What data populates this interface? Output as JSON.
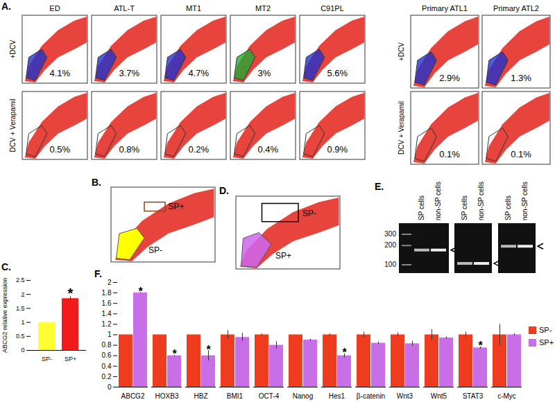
{
  "figure": {
    "A": {
      "label": "A.",
      "columns": [
        "ED",
        "ATL-T",
        "MT1",
        "MT2",
        "C91PL"
      ],
      "rows": [
        "+DCV",
        "DCV + Verapamil"
      ],
      "percentages": [
        [
          "4.1%",
          "3.7%",
          "4.7%",
          "3%",
          "5.6%"
        ],
        [
          "0.5%",
          "0.8%",
          "0.2%",
          "0.4%",
          "0.9%"
        ]
      ],
      "gate_colors": [
        "#2233cc",
        "#2233cc",
        "#2233cc",
        "#22aa33",
        "#2233cc"
      ],
      "primary": {
        "columns": [
          "Primary ATL1",
          "Primary ATL2"
        ],
        "rows": [
          "+DCV",
          "DCV + Verapamil"
        ],
        "percentages": [
          [
            "2.9%",
            "1.3%"
          ],
          [
            "0.1%",
            "0.1%"
          ]
        ]
      }
    },
    "B": {
      "label": "B.",
      "upper_gate": "SP+",
      "lower_gate": "SP-"
    },
    "D": {
      "label": "D.",
      "upper_gate": "SP-",
      "lower_gate": "SP+"
    },
    "E": {
      "label": "E.",
      "ladder": [
        300,
        200,
        100
      ],
      "gels": [
        {
          "lanes": [
            "SP cells",
            "non-SP cells"
          ],
          "band_bp": 170
        },
        {
          "lanes": [
            "SP cells",
            "non-SP cells"
          ],
          "band_bp": 105
        },
        {
          "lanes": [
            "SP cells",
            "non-SP cells"
          ],
          "band_bp": 195
        }
      ]
    }
  },
  "chart_data": [
    {
      "type": "bar",
      "title": "C.",
      "categories": [
        "SP-",
        "SP+"
      ],
      "values": [
        1,
        1.85
      ],
      "errors": [
        0,
        0.07
      ],
      "colors": [
        "#ffff33",
        "#f21b1b"
      ],
      "ylabel": "ABCG2 relative expression",
      "ylim": [
        0,
        2.5
      ],
      "yticks": [
        0,
        0.5,
        1,
        1.5,
        2,
        2.5
      ],
      "annotations": [
        {
          "category": "SP+",
          "text": "*"
        }
      ]
    },
    {
      "type": "bar",
      "title": "F.",
      "categories": [
        "ABCG2",
        "HOXB3",
        "HBZ",
        "BMI1",
        "OCT-4",
        "Nanog",
        "Hes1",
        "β-catenin",
        "Wnt3",
        "Wnt5",
        "STAT3",
        "c-Myc"
      ],
      "series": [
        {
          "name": "SP-",
          "color": "#f03c1e",
          "values": [
            1,
            1,
            1,
            1,
            1,
            1,
            1,
            1,
            1,
            1,
            1,
            1
          ],
          "errors": [
            0,
            0,
            0,
            0.08,
            0.02,
            0,
            0.02,
            0.05,
            0.04,
            0.1,
            0.05,
            0.2
          ]
        },
        {
          "name": "SP+",
          "color": "#c86ee6",
          "values": [
            1.8,
            0.6,
            0.6,
            0.95,
            0.8,
            0.9,
            0.6,
            0.84,
            0.83,
            0.94,
            0.75,
            1.0
          ],
          "errors": [
            0.01,
            0.01,
            0.1,
            0.08,
            0.07,
            0.02,
            0.04,
            0.02,
            0.05,
            0.02,
            0.02,
            0.02
          ]
        }
      ],
      "ylim": [
        0,
        2
      ],
      "yticks": [
        0,
        0.2,
        0.4,
        0.6,
        0.8,
        1,
        1.2,
        1.4,
        1.6,
        1.8,
        2
      ],
      "legend": "right",
      "annotations": [
        {
          "category": "ABCG2",
          "series": "SP+",
          "text": "*"
        },
        {
          "category": "HOXB3",
          "series": "SP+",
          "text": "*"
        },
        {
          "category": "HBZ",
          "series": "SP+",
          "text": "*"
        },
        {
          "category": "Hes1",
          "series": "SP+",
          "text": "*"
        },
        {
          "category": "STAT3",
          "series": "SP+",
          "text": "*"
        }
      ]
    }
  ]
}
